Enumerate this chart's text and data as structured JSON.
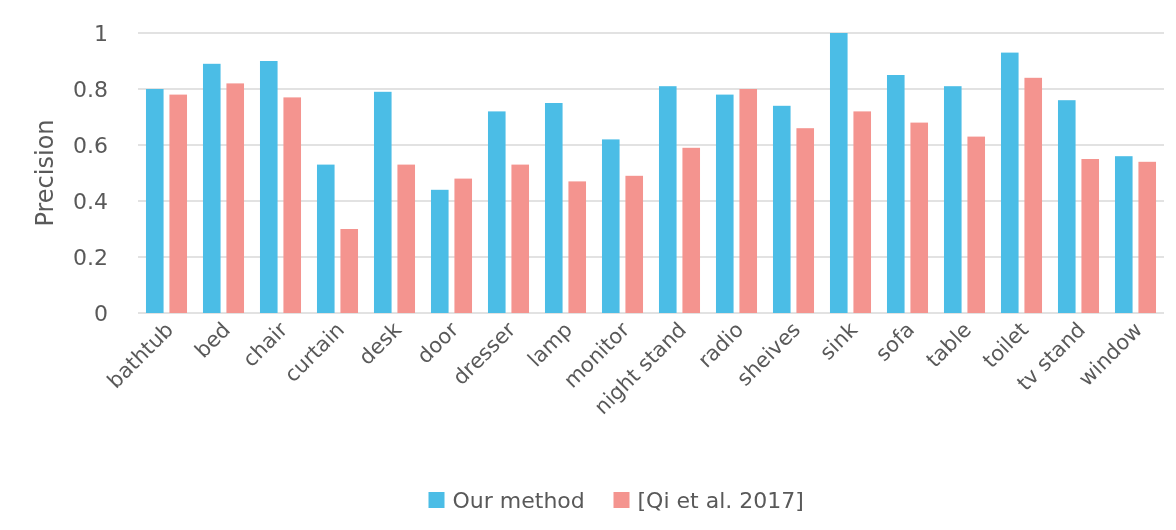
{
  "chart_data": {
    "type": "bar",
    "ylabel": "Precision",
    "categories": [
      "bathtub",
      "bed",
      "chair",
      "curtain",
      "desk",
      "door",
      "dresser",
      "lamp",
      "monitor",
      "night stand",
      "radio",
      "sheives",
      "sink",
      "sofa",
      "table",
      "toilet",
      "tv stand",
      "window"
    ],
    "series": [
      {
        "name": "Our method",
        "color": "#4bbde6",
        "values": [
          0.8,
          0.89,
          0.9,
          0.53,
          0.79,
          0.44,
          0.72,
          0.75,
          0.62,
          0.81,
          0.78,
          0.74,
          1.0,
          0.85,
          0.81,
          0.93,
          0.76,
          0.56
        ]
      },
      {
        "name": "[Qi et al. 2017]",
        "color": "#f4948f",
        "values": [
          0.78,
          0.82,
          0.77,
          0.3,
          0.53,
          0.48,
          0.53,
          0.47,
          0.49,
          0.59,
          0.8,
          0.66,
          0.72,
          0.68,
          0.63,
          0.84,
          0.55,
          0.54
        ]
      }
    ],
    "ylim": [
      0,
      1
    ],
    "yticks": [
      0,
      0.2,
      0.4,
      0.6,
      0.8,
      1
    ],
    "grid": "y",
    "legend": "bottom"
  }
}
